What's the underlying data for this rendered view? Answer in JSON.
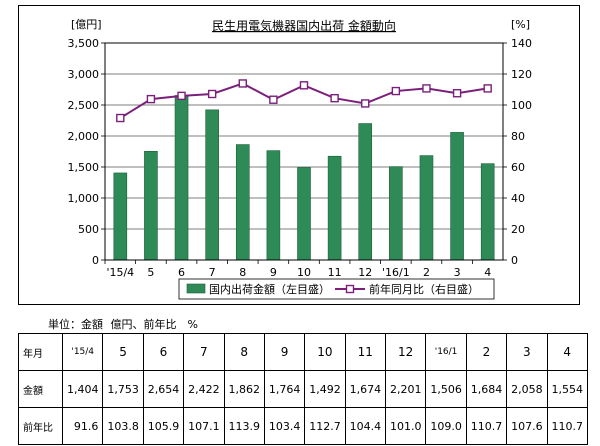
{
  "chart_data": {
    "type": "bar+line",
    "title": "民生用電気機器国内出荷 金額動向",
    "y_left_unit": "[億円]",
    "y_right_unit": "[%]",
    "categories": [
      "'15/4",
      "5",
      "6",
      "7",
      "8",
      "9",
      "10",
      "11",
      "12",
      "'16/1",
      "2",
      "3",
      "4"
    ],
    "ylim_left": [
      0,
      3500
    ],
    "ylim_right": [
      0,
      140
    ],
    "y_left_ticks": [
      "0",
      "500",
      "1,000",
      "1,500",
      "2,000",
      "2,500",
      "3,000",
      "3,500"
    ],
    "y_right_ticks": [
      "0",
      "20",
      "40",
      "60",
      "80",
      "100",
      "120",
      "140"
    ],
    "series": [
      {
        "name": "国内出荷金額（左目盛）",
        "type": "bar",
        "axis": "left",
        "color": "#2e8b57",
        "values": [
          1404,
          1753,
          2654,
          2422,
          1862,
          1764,
          1492,
          1674,
          2201,
          1506,
          1684,
          2058,
          1554
        ]
      },
      {
        "name": "前年同月比（右目盛）",
        "type": "line",
        "axis": "right",
        "color": "#7b1f7b",
        "values": [
          91.6,
          103.8,
          105.9,
          107.1,
          113.9,
          103.4,
          112.7,
          104.4,
          101.0,
          109.0,
          110.7,
          107.6,
          110.7
        ]
      }
    ],
    "grid": true,
    "legend": "bottom"
  },
  "table": {
    "unit_label": "単位：金額",
    "unit_value": "億円、前年比　%",
    "row_header_month": "年月",
    "row_header_amount": "金額",
    "row_header_yoy": "前年比",
    "months": [
      "'15/4",
      "5",
      "6",
      "7",
      "8",
      "9",
      "10",
      "11",
      "12",
      "'16/1",
      "2",
      "3",
      "4"
    ],
    "amounts": [
      "1,404",
      "1,753",
      "2,654",
      "2,422",
      "1,862",
      "1,764",
      "1,492",
      "1,674",
      "2,201",
      "1,506",
      "1,684",
      "2,058",
      "1,554"
    ],
    "yoy": [
      "91.6",
      "103.8",
      "105.9",
      "107.1",
      "113.9",
      "103.4",
      "112.7",
      "104.4",
      "101.0",
      "109.0",
      "110.7",
      "107.6",
      "110.7"
    ]
  }
}
